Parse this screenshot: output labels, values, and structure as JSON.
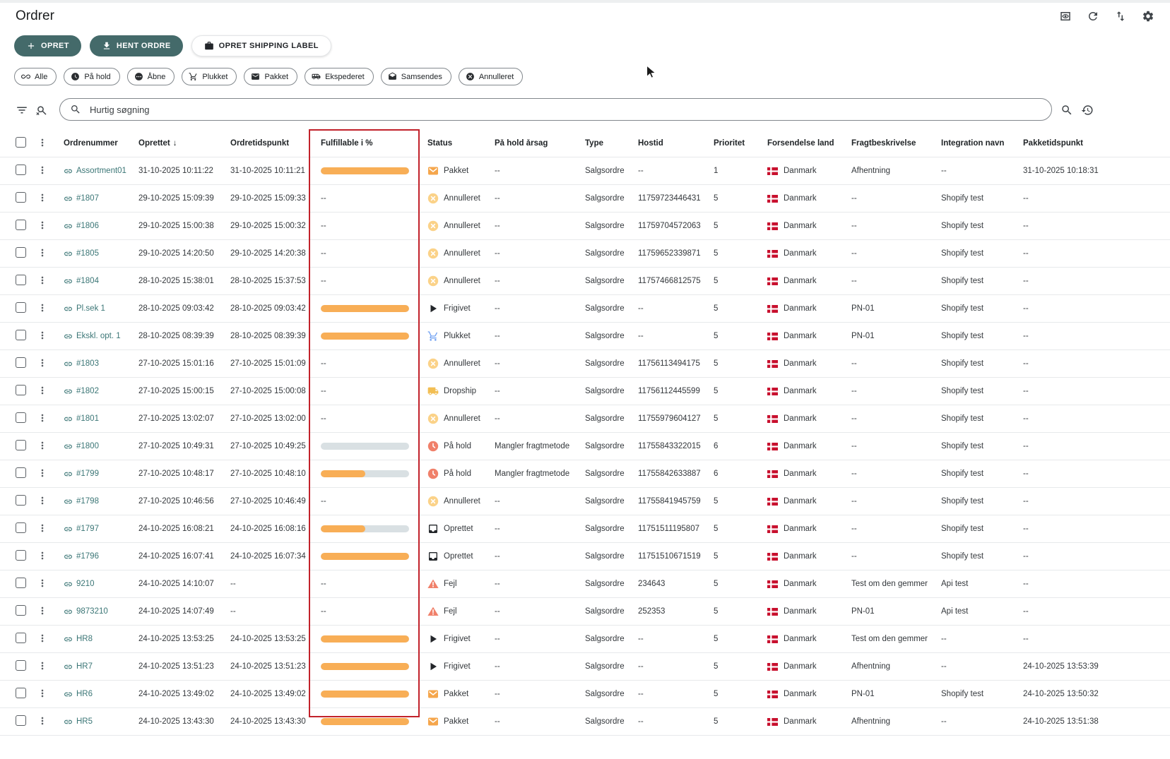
{
  "page": {
    "title": "Ordrer"
  },
  "colors": {
    "accent_teal": "#446A6A",
    "highlight_red": "#C2222B",
    "bar_orange": "#F8AE56",
    "bar_track": "#D9E0E3",
    "link_teal": "#3B7676",
    "flag_red": "#C8102E"
  },
  "header_icons": [
    {
      "name": "preview-toggle",
      "icon": "eyebox"
    },
    {
      "name": "refresh",
      "icon": "refresh"
    },
    {
      "name": "sort-rows",
      "icon": "swap"
    },
    {
      "name": "settings",
      "icon": "gear"
    }
  ],
  "actions": [
    {
      "label": "OPRET",
      "icon": "plus",
      "variant": "primary"
    },
    {
      "label": "HENT ORDRE",
      "icon": "download",
      "variant": "primary"
    },
    {
      "label": "OPRET SHIPPING LABEL",
      "icon": "briefcase",
      "variant": "secondary"
    }
  ],
  "filter_chips": [
    {
      "icon": "infinity",
      "label": "Alle"
    },
    {
      "icon": "clock",
      "label": "På hold"
    },
    {
      "icon": "pending",
      "label": "Åbne"
    },
    {
      "icon": "cart",
      "label": "Plukket"
    },
    {
      "icon": "envelope",
      "label": "Pakket"
    },
    {
      "icon": "shuttle",
      "label": "Ekspederet"
    },
    {
      "icon": "envelope2",
      "label": "Samsendes"
    },
    {
      "icon": "cancel",
      "label": "Annulleret"
    }
  ],
  "search": {
    "placeholder": "Hurtig søgning"
  },
  "toolbar_icons": {
    "left": [
      "filter",
      "search-off"
    ],
    "right": [
      "search",
      "history"
    ]
  },
  "table": {
    "columns": [
      "Ordrenummer",
      "Oprettet",
      "Ordretidspunkt",
      "Fulfillable i %",
      "Status",
      "På hold årsag",
      "Type",
      "Hostid",
      "Prioritet",
      "Forsendelse land",
      "Fragtbeskrivelse",
      "Integration navn",
      "Pakketidspunkt"
    ],
    "sorted_by": "Oprettet",
    "sort_direction": "desc",
    "sort_arrow": "↓",
    "empty_placeholder": "--",
    "highlighted_column": "Fulfillable i %",
    "rows": [
      {
        "order": "Assortment01",
        "created": "31-10-2025 10:11:22",
        "ordertime": "31-10-2025 10:11:21",
        "fulfillable_pct": 100,
        "status": "Pakket",
        "status_type": "pakket",
        "hold_reason": "--",
        "type": "Salgsordre",
        "hostid": "--",
        "priority": "1",
        "country": "Danmark",
        "freight": "Afhentning",
        "integration": "--",
        "packed": "31-10-2025 10:18:31"
      },
      {
        "order": "#1807",
        "created": "29-10-2025 15:09:39",
        "ordertime": "29-10-2025 15:09:33",
        "fulfillable_pct": null,
        "status": "Annulleret",
        "status_type": "annulleret",
        "hold_reason": "--",
        "type": "Salgsordre",
        "hostid": "11759723446431",
        "priority": "5",
        "country": "Danmark",
        "freight": "--",
        "integration": "Shopify test",
        "packed": "--"
      },
      {
        "order": "#1806",
        "created": "29-10-2025 15:00:38",
        "ordertime": "29-10-2025 15:00:32",
        "fulfillable_pct": null,
        "status": "Annulleret",
        "status_type": "annulleret",
        "hold_reason": "--",
        "type": "Salgsordre",
        "hostid": "11759704572063",
        "priority": "5",
        "country": "Danmark",
        "freight": "--",
        "integration": "Shopify test",
        "packed": "--"
      },
      {
        "order": "#1805",
        "created": "29-10-2025 14:20:50",
        "ordertime": "29-10-2025 14:20:38",
        "fulfillable_pct": null,
        "status": "Annulleret",
        "status_type": "annulleret",
        "hold_reason": "--",
        "type": "Salgsordre",
        "hostid": "11759652339871",
        "priority": "5",
        "country": "Danmark",
        "freight": "--",
        "integration": "Shopify test",
        "packed": "--"
      },
      {
        "order": "#1804",
        "created": "28-10-2025 15:38:01",
        "ordertime": "28-10-2025 15:37:53",
        "fulfillable_pct": null,
        "status": "Annulleret",
        "status_type": "annulleret",
        "hold_reason": "--",
        "type": "Salgsordre",
        "hostid": "11757466812575",
        "priority": "5",
        "country": "Danmark",
        "freight": "--",
        "integration": "Shopify test",
        "packed": "--"
      },
      {
        "order": "Pl.sek 1",
        "created": "28-10-2025 09:03:42",
        "ordertime": "28-10-2025 09:03:42",
        "fulfillable_pct": 100,
        "status": "Frigivet",
        "status_type": "frigivet",
        "hold_reason": "--",
        "type": "Salgsordre",
        "hostid": "--",
        "priority": "5",
        "country": "Danmark",
        "freight": "PN-01",
        "integration": "Shopify test",
        "packed": "--"
      },
      {
        "order": "Ekskl. opt. 1",
        "created": "28-10-2025 08:39:39",
        "ordertime": "28-10-2025 08:39:39",
        "fulfillable_pct": 100,
        "status": "Plukket",
        "status_type": "plukket",
        "hold_reason": "--",
        "type": "Salgsordre",
        "hostid": "--",
        "priority": "5",
        "country": "Danmark",
        "freight": "PN-01",
        "integration": "Shopify test",
        "packed": "--"
      },
      {
        "order": "#1803",
        "created": "27-10-2025 15:01:16",
        "ordertime": "27-10-2025 15:01:09",
        "fulfillable_pct": null,
        "status": "Annulleret",
        "status_type": "annulleret",
        "hold_reason": "--",
        "type": "Salgsordre",
        "hostid": "11756113494175",
        "priority": "5",
        "country": "Danmark",
        "freight": "--",
        "integration": "Shopify test",
        "packed": "--"
      },
      {
        "order": "#1802",
        "created": "27-10-2025 15:00:15",
        "ordertime": "27-10-2025 15:00:08",
        "fulfillable_pct": null,
        "status": "Dropship",
        "status_type": "dropship",
        "hold_reason": "--",
        "type": "Salgsordre",
        "hostid": "11756112445599",
        "priority": "5",
        "country": "Danmark",
        "freight": "--",
        "integration": "Shopify test",
        "packed": "--"
      },
      {
        "order": "#1801",
        "created": "27-10-2025 13:02:07",
        "ordertime": "27-10-2025 13:02:00",
        "fulfillable_pct": null,
        "status": "Annulleret",
        "status_type": "annulleret",
        "hold_reason": "--",
        "type": "Salgsordre",
        "hostid": "11755979604127",
        "priority": "5",
        "country": "Danmark",
        "freight": "--",
        "integration": "Shopify test",
        "packed": "--"
      },
      {
        "order": "#1800",
        "created": "27-10-2025 10:49:31",
        "ordertime": "27-10-2025 10:49:25",
        "fulfillable_pct": 0,
        "status": "På hold",
        "status_type": "pahold",
        "hold_reason": "Mangler fragtmetode",
        "type": "Salgsordre",
        "hostid": "11755843322015",
        "priority": "6",
        "country": "Danmark",
        "freight": "--",
        "integration": "Shopify test",
        "packed": "--"
      },
      {
        "order": "#1799",
        "created": "27-10-2025 10:48:17",
        "ordertime": "27-10-2025 10:48:10",
        "fulfillable_pct": 50,
        "status": "På hold",
        "status_type": "pahold",
        "hold_reason": "Mangler fragtmetode",
        "type": "Salgsordre",
        "hostid": "11755842633887",
        "priority": "6",
        "country": "Danmark",
        "freight": "--",
        "integration": "Shopify test",
        "packed": "--"
      },
      {
        "order": "#1798",
        "created": "27-10-2025 10:46:56",
        "ordertime": "27-10-2025 10:46:49",
        "fulfillable_pct": null,
        "status": "Annulleret",
        "status_type": "annulleret",
        "hold_reason": "--",
        "type": "Salgsordre",
        "hostid": "11755841945759",
        "priority": "5",
        "country": "Danmark",
        "freight": "--",
        "integration": "Shopify test",
        "packed": "--"
      },
      {
        "order": "#1797",
        "created": "24-10-2025 16:08:21",
        "ordertime": "24-10-2025 16:08:16",
        "fulfillable_pct": 50,
        "status": "Oprettet",
        "status_type": "oprettet",
        "hold_reason": "--",
        "type": "Salgsordre",
        "hostid": "11751511195807",
        "priority": "5",
        "country": "Danmark",
        "freight": "--",
        "integration": "Shopify test",
        "packed": "--"
      },
      {
        "order": "#1796",
        "created": "24-10-2025 16:07:41",
        "ordertime": "24-10-2025 16:07:34",
        "fulfillable_pct": 100,
        "status": "Oprettet",
        "status_type": "oprettet",
        "hold_reason": "--",
        "type": "Salgsordre",
        "hostid": "11751510671519",
        "priority": "5",
        "country": "Danmark",
        "freight": "--",
        "integration": "Shopify test",
        "packed": "--"
      },
      {
        "order": "9210",
        "created": "24-10-2025 14:10:07",
        "ordertime": "--",
        "fulfillable_pct": null,
        "status": "Fejl",
        "status_type": "fejl",
        "hold_reason": "--",
        "type": "Salgsordre",
        "hostid": "234643",
        "priority": "5",
        "country": "Danmark",
        "freight": "Test om den gemmer",
        "integration": "Api test",
        "packed": "--"
      },
      {
        "order": "9873210",
        "created": "24-10-2025 14:07:49",
        "ordertime": "--",
        "fulfillable_pct": null,
        "status": "Fejl",
        "status_type": "fejl",
        "hold_reason": "--",
        "type": "Salgsordre",
        "hostid": "252353",
        "priority": "5",
        "country": "Danmark",
        "freight": "PN-01",
        "integration": "Api test",
        "packed": "--"
      },
      {
        "order": "HR8",
        "created": "24-10-2025 13:53:25",
        "ordertime": "24-10-2025 13:53:25",
        "fulfillable_pct": 100,
        "status": "Frigivet",
        "status_type": "frigivet",
        "hold_reason": "--",
        "type": "Salgsordre",
        "hostid": "--",
        "priority": "5",
        "country": "Danmark",
        "freight": "Test om den gemmer",
        "integration": "--",
        "packed": "--"
      },
      {
        "order": "HR7",
        "created": "24-10-2025 13:51:23",
        "ordertime": "24-10-2025 13:51:23",
        "fulfillable_pct": 100,
        "status": "Frigivet",
        "status_type": "frigivet",
        "hold_reason": "--",
        "type": "Salgsordre",
        "hostid": "--",
        "priority": "5",
        "country": "Danmark",
        "freight": "Afhentning",
        "integration": "--",
        "packed": "24-10-2025 13:53:39"
      },
      {
        "order": "HR6",
        "created": "24-10-2025 13:49:02",
        "ordertime": "24-10-2025 13:49:02",
        "fulfillable_pct": 100,
        "status": "Pakket",
        "status_type": "pakket",
        "hold_reason": "--",
        "type": "Salgsordre",
        "hostid": "--",
        "priority": "5",
        "country": "Danmark",
        "freight": "PN-01",
        "integration": "Shopify test",
        "packed": "24-10-2025 13:50:32"
      },
      {
        "order": "HR5",
        "created": "24-10-2025 13:43:30",
        "ordertime": "24-10-2025 13:43:30",
        "fulfillable_pct": 100,
        "status": "Pakket",
        "status_type": "pakket",
        "hold_reason": "--",
        "type": "Salgsordre",
        "hostid": "--",
        "priority": "5",
        "country": "Danmark",
        "freight": "Afhentning",
        "integration": "--",
        "packed": "24-10-2025 13:51:38"
      }
    ]
  }
}
